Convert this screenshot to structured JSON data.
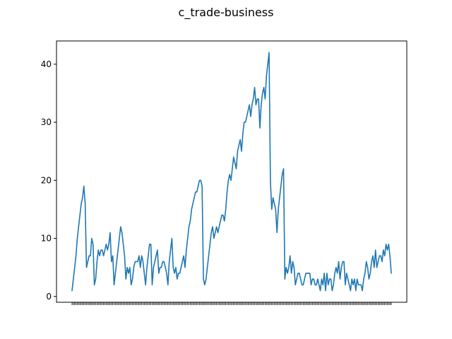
{
  "chart_data": {
    "type": "line",
    "title": "c_trade-business",
    "xlabel": "",
    "ylabel": "",
    "ylim": [
      -1,
      44
    ],
    "yticks": [
      0,
      10,
      20,
      30,
      40
    ],
    "grid": false,
    "series": [
      {
        "color": "#1f77b4",
        "values": [
          1,
          3,
          5,
          7,
          10,
          12,
          14,
          16,
          17,
          19,
          16,
          5,
          6,
          7,
          7,
          10,
          9,
          2,
          3,
          6,
          8,
          7,
          8,
          8,
          7,
          8,
          9,
          8,
          9,
          11,
          6,
          7,
          2,
          4,
          6,
          8,
          10,
          12,
          11,
          9,
          7,
          3,
          5,
          4,
          5,
          2,
          3,
          5,
          6,
          6,
          6,
          7,
          5,
          7,
          6,
          4,
          2,
          5,
          7,
          9,
          9,
          2,
          5,
          6,
          7,
          8,
          4,
          5,
          5,
          6,
          6,
          5,
          4,
          2,
          6,
          8,
          10,
          5,
          4,
          5,
          3,
          4,
          4,
          5,
          6,
          7,
          5,
          8,
          10,
          12,
          13,
          15,
          16,
          17,
          18,
          18,
          19,
          20,
          20,
          19,
          3,
          2,
          3,
          5,
          7,
          9,
          11,
          12,
          10,
          11,
          12,
          11,
          12,
          13,
          14,
          14,
          13,
          15,
          18,
          20,
          21,
          20,
          22,
          24,
          23,
          22,
          25,
          26,
          27,
          25,
          28,
          30,
          30,
          31,
          32,
          33,
          31,
          33,
          34,
          36,
          33,
          34,
          34,
          29,
          33,
          35,
          36,
          34,
          38,
          40,
          42,
          20,
          15,
          17,
          16,
          15,
          11,
          15,
          17,
          19,
          21,
          22,
          3,
          5,
          4,
          5,
          7,
          4,
          6,
          5,
          2,
          3,
          4,
          4,
          3,
          2,
          2,
          3,
          4,
          4,
          4,
          4,
          2,
          3,
          3,
          2,
          2,
          3,
          2,
          1,
          3,
          2,
          4,
          1,
          4,
          2,
          3,
          3,
          1,
          2,
          4,
          5,
          4,
          6,
          3,
          5,
          6,
          6,
          2,
          4,
          3,
          2,
          1,
          3,
          2,
          3,
          1,
          3,
          2,
          2,
          2,
          1,
          3,
          4,
          6,
          5,
          3,
          4,
          6,
          7,
          5,
          8,
          5,
          6,
          7,
          7,
          6,
          8,
          7,
          9,
          8,
          9,
          7,
          4
        ]
      }
    ]
  }
}
